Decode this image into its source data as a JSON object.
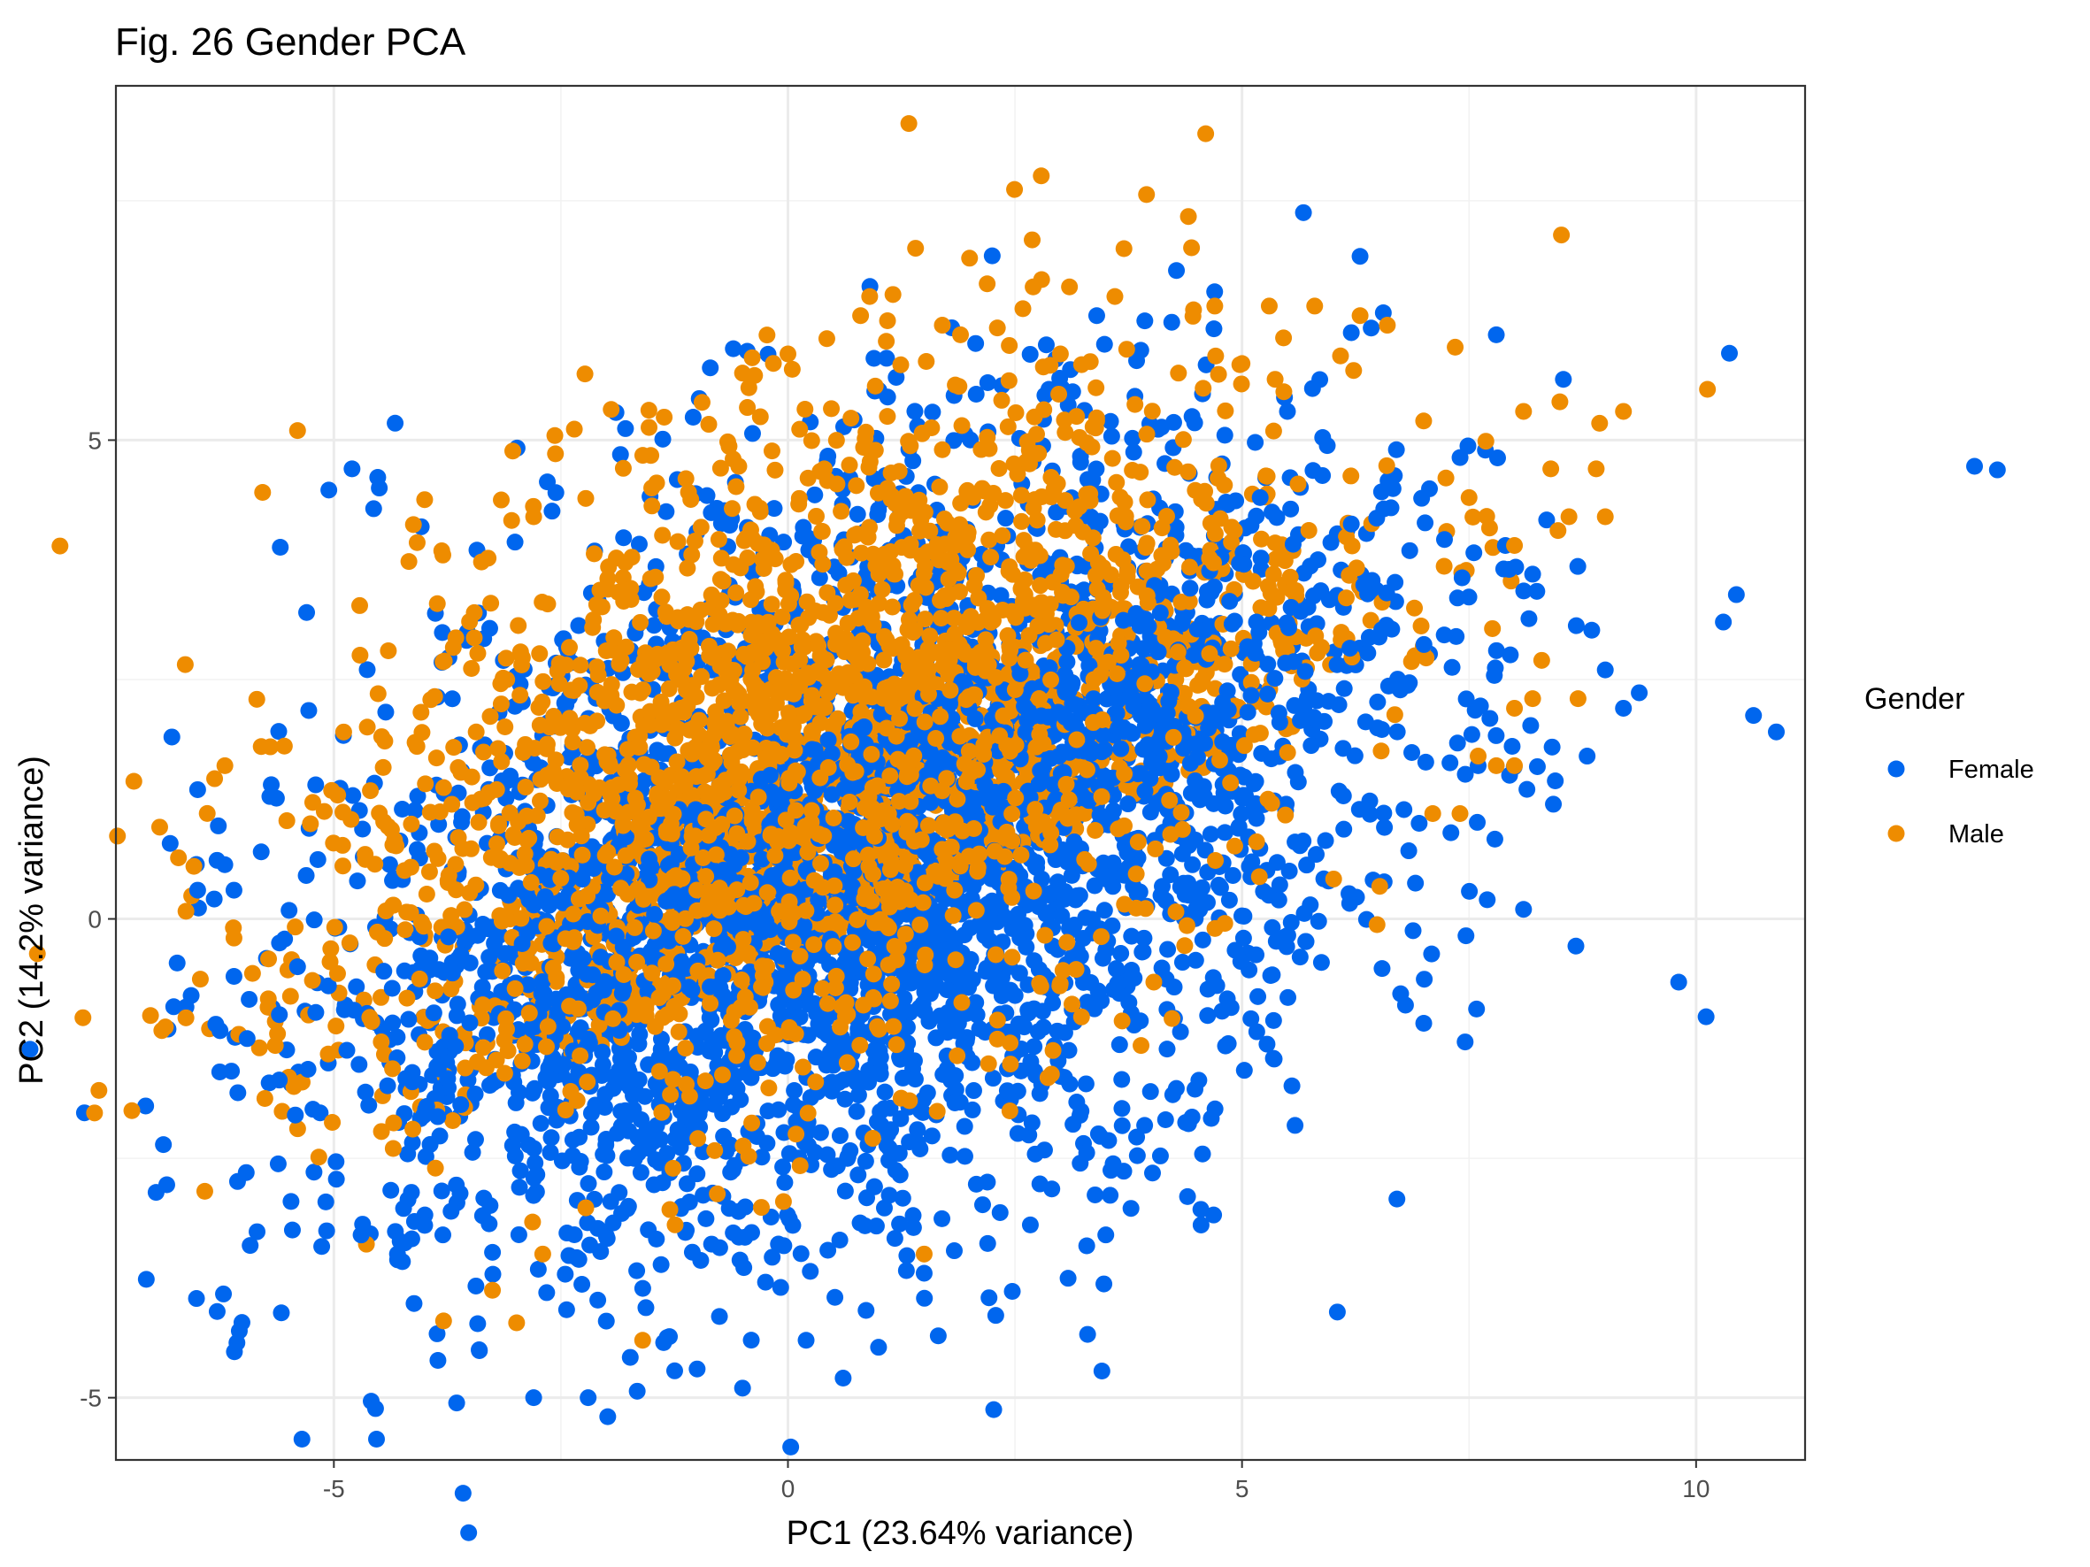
{
  "chart_data": {
    "type": "scatter",
    "title": "Fig. 26 Gender PCA",
    "xlabel": "PC1 (23.64% variance)",
    "ylabel": "PC2 (14.2% variance)",
    "xlim": [
      -7.4,
      11.2
    ],
    "ylim": [
      -5.65,
      8.7
    ],
    "x_ticks": [
      -5,
      0,
      5,
      10
    ],
    "x_tick_labels": [
      "-5",
      "0",
      "5",
      "10"
    ],
    "y_ticks": [
      -5,
      0,
      5
    ],
    "y_tick_labels": [
      "-5",
      "0",
      "5"
    ],
    "grid": true,
    "legend": {
      "title": "Gender",
      "position": "right"
    },
    "series": [
      {
        "name": "Female",
        "color": "#0066ee",
        "points": [
          [
            -6.5,
            1.35
          ],
          [
            -6.5,
            0.3
          ],
          [
            -6.1,
            0.3
          ],
          [
            -6.3,
            -1.1
          ],
          [
            -6.1,
            -0.6
          ],
          [
            -5.8,
            0.7
          ],
          [
            -5.6,
            -1.0
          ],
          [
            -5.3,
            3.2
          ],
          [
            -4.8,
            4.7
          ],
          [
            -4.5,
            4.5
          ],
          [
            -4.7,
            -3.3
          ],
          [
            -3.4,
            -4.5
          ],
          [
            -2.8,
            -5.0
          ],
          [
            -2.2,
            -5.0
          ],
          [
            -0.5,
            -4.9
          ],
          [
            -1.0,
            -4.7
          ],
          [
            0.2,
            -4.4
          ],
          [
            1.5,
            -3.7
          ],
          [
            3.4,
            6.3
          ],
          [
            4.4,
            -2.9
          ],
          [
            3.5,
            -3.3
          ],
          [
            5.5,
            5.3
          ],
          [
            6.7,
            4.9
          ],
          [
            7.8,
            6.1
          ],
          [
            7.9,
            3.9
          ],
          [
            8.2,
            3.6
          ],
          [
            9.0,
            2.6
          ],
          [
            9.2,
            2.2
          ],
          [
            8.8,
            1.7
          ],
          [
            10.3,
            3.1
          ],
          [
            8.1,
            0.1
          ],
          [
            7.7,
            0.2
          ],
          [
            7.6,
            1.6
          ],
          [
            7.3,
            0.9
          ],
          [
            6.8,
            -0.9
          ],
          [
            5.2,
            4.4
          ],
          [
            2.2,
            5.6
          ],
          [
            -2.0,
            -4.2
          ],
          [
            -4.0,
            -3.2
          ],
          [
            -3.8,
            -3.3
          ],
          [
            -5.2,
            1.4
          ],
          [
            -5.4,
            -0.5
          ]
        ]
      },
      {
        "name": "Male",
        "color": "#ee8c00",
        "points": [
          [
            4.6,
            8.2
          ],
          [
            3.7,
            7.0
          ],
          [
            2.0,
            6.9
          ],
          [
            2.7,
            6.6
          ],
          [
            3.1,
            6.6
          ],
          [
            3.6,
            6.5
          ],
          [
            0.9,
            6.5
          ],
          [
            0.8,
            6.3
          ],
          [
            1.7,
            6.2
          ],
          [
            0.0,
            5.9
          ],
          [
            -0.5,
            5.7
          ],
          [
            -5.4,
            5.1
          ],
          [
            -6.1,
            -0.2
          ],
          [
            -6.2,
            1.6
          ],
          [
            -5.8,
            1.8
          ],
          [
            4.7,
            6.4
          ],
          [
            5.3,
            6.4
          ],
          [
            5.8,
            6.4
          ],
          [
            6.3,
            6.3
          ],
          [
            6.6,
            6.2
          ],
          [
            7.0,
            5.2
          ],
          [
            8.1,
            5.3
          ],
          [
            8.5,
            5.4
          ],
          [
            9.2,
            5.3
          ],
          [
            8.4,
            4.7
          ],
          [
            8.9,
            4.7
          ],
          [
            8.6,
            4.2
          ],
          [
            9.0,
            4.2
          ],
          [
            7.5,
            4.4
          ],
          [
            8.0,
            3.9
          ],
          [
            8.3,
            2.7
          ],
          [
            8.2,
            2.3
          ],
          [
            8.7,
            2.3
          ],
          [
            8.0,
            2.2
          ],
          [
            7.8,
            1.6
          ],
          [
            8.0,
            1.6
          ],
          [
            7.6,
            1.7
          ],
          [
            7.4,
            1.1
          ],
          [
            7.1,
            1.1
          ],
          [
            -2.7,
            -3.5
          ],
          [
            -1.6,
            -4.4
          ],
          [
            1.5,
            -3.5
          ],
          [
            1.9,
            6.1
          ],
          [
            3.0,
            5.9
          ],
          [
            4.3,
            5.7
          ],
          [
            5.0,
            5.8
          ],
          [
            -2.8,
            4.2
          ],
          [
            -1.5,
            4.5
          ],
          [
            0.4,
            4.7
          ],
          [
            1.7,
            4.9
          ],
          [
            3.9,
            4.1
          ],
          [
            -3.8,
            3.8
          ],
          [
            -4.4,
            2.8
          ],
          [
            -0.6,
            3.7
          ],
          [
            1.0,
            3.6
          ],
          [
            2.8,
            3.3
          ],
          [
            -2.0,
            2.8
          ]
        ]
      }
    ]
  }
}
